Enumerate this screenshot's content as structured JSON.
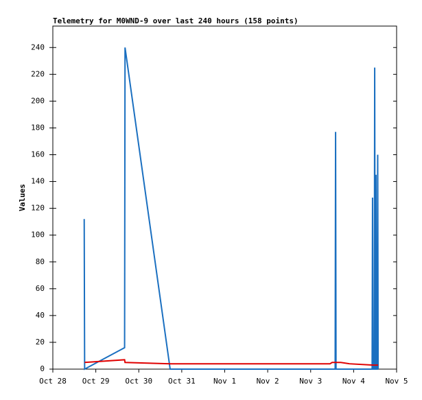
{
  "chart_data": {
    "type": "line",
    "title": "Telemetry for M0WND-9 over last 240 hours (158 points)",
    "y_label": "Values",
    "xlim": [
      0,
      8
    ],
    "xticks": [
      {
        "value": 0,
        "label": "Oct 28"
      },
      {
        "value": 1,
        "label": "Oct 29"
      },
      {
        "value": 2,
        "label": "Oct 30"
      },
      {
        "value": 3,
        "label": "Oct 31"
      },
      {
        "value": 4,
        "label": "Nov 1"
      },
      {
        "value": 5,
        "label": "Nov 2"
      },
      {
        "value": 6,
        "label": "Nov 3"
      },
      {
        "value": 7,
        "label": "Nov 4"
      },
      {
        "value": 8,
        "label": "Nov 5"
      }
    ],
    "ylim": [
      0,
      256
    ],
    "yticks": [
      0,
      20,
      40,
      60,
      80,
      100,
      120,
      140,
      160,
      180,
      200,
      220,
      240
    ],
    "series": [
      {
        "color": "#1a6fc0",
        "x": [
          0.73,
          0.74,
          1.67,
          1.68,
          2.73,
          6.57,
          6.58,
          6.59,
          7.43,
          7.44,
          7.45,
          7.48,
          7.49,
          7.5,
          7.51,
          7.52,
          7.53,
          7.55,
          7.56,
          7.57
        ],
        "values": [
          112,
          0,
          16,
          240,
          0,
          0,
          177,
          0,
          0,
          128,
          0,
          0,
          225,
          0,
          0,
          145,
          0,
          0,
          160,
          0
        ]
      },
      {
        "color": "#e00000",
        "x": [
          0.74,
          1.67,
          1.68,
          2.2,
          2.73,
          6.45,
          6.5,
          6.7,
          6.9,
          7.45,
          7.57
        ],
        "values": [
          5,
          7,
          5,
          4.5,
          4,
          4,
          5,
          5,
          4,
          3,
          3
        ]
      }
    ]
  }
}
